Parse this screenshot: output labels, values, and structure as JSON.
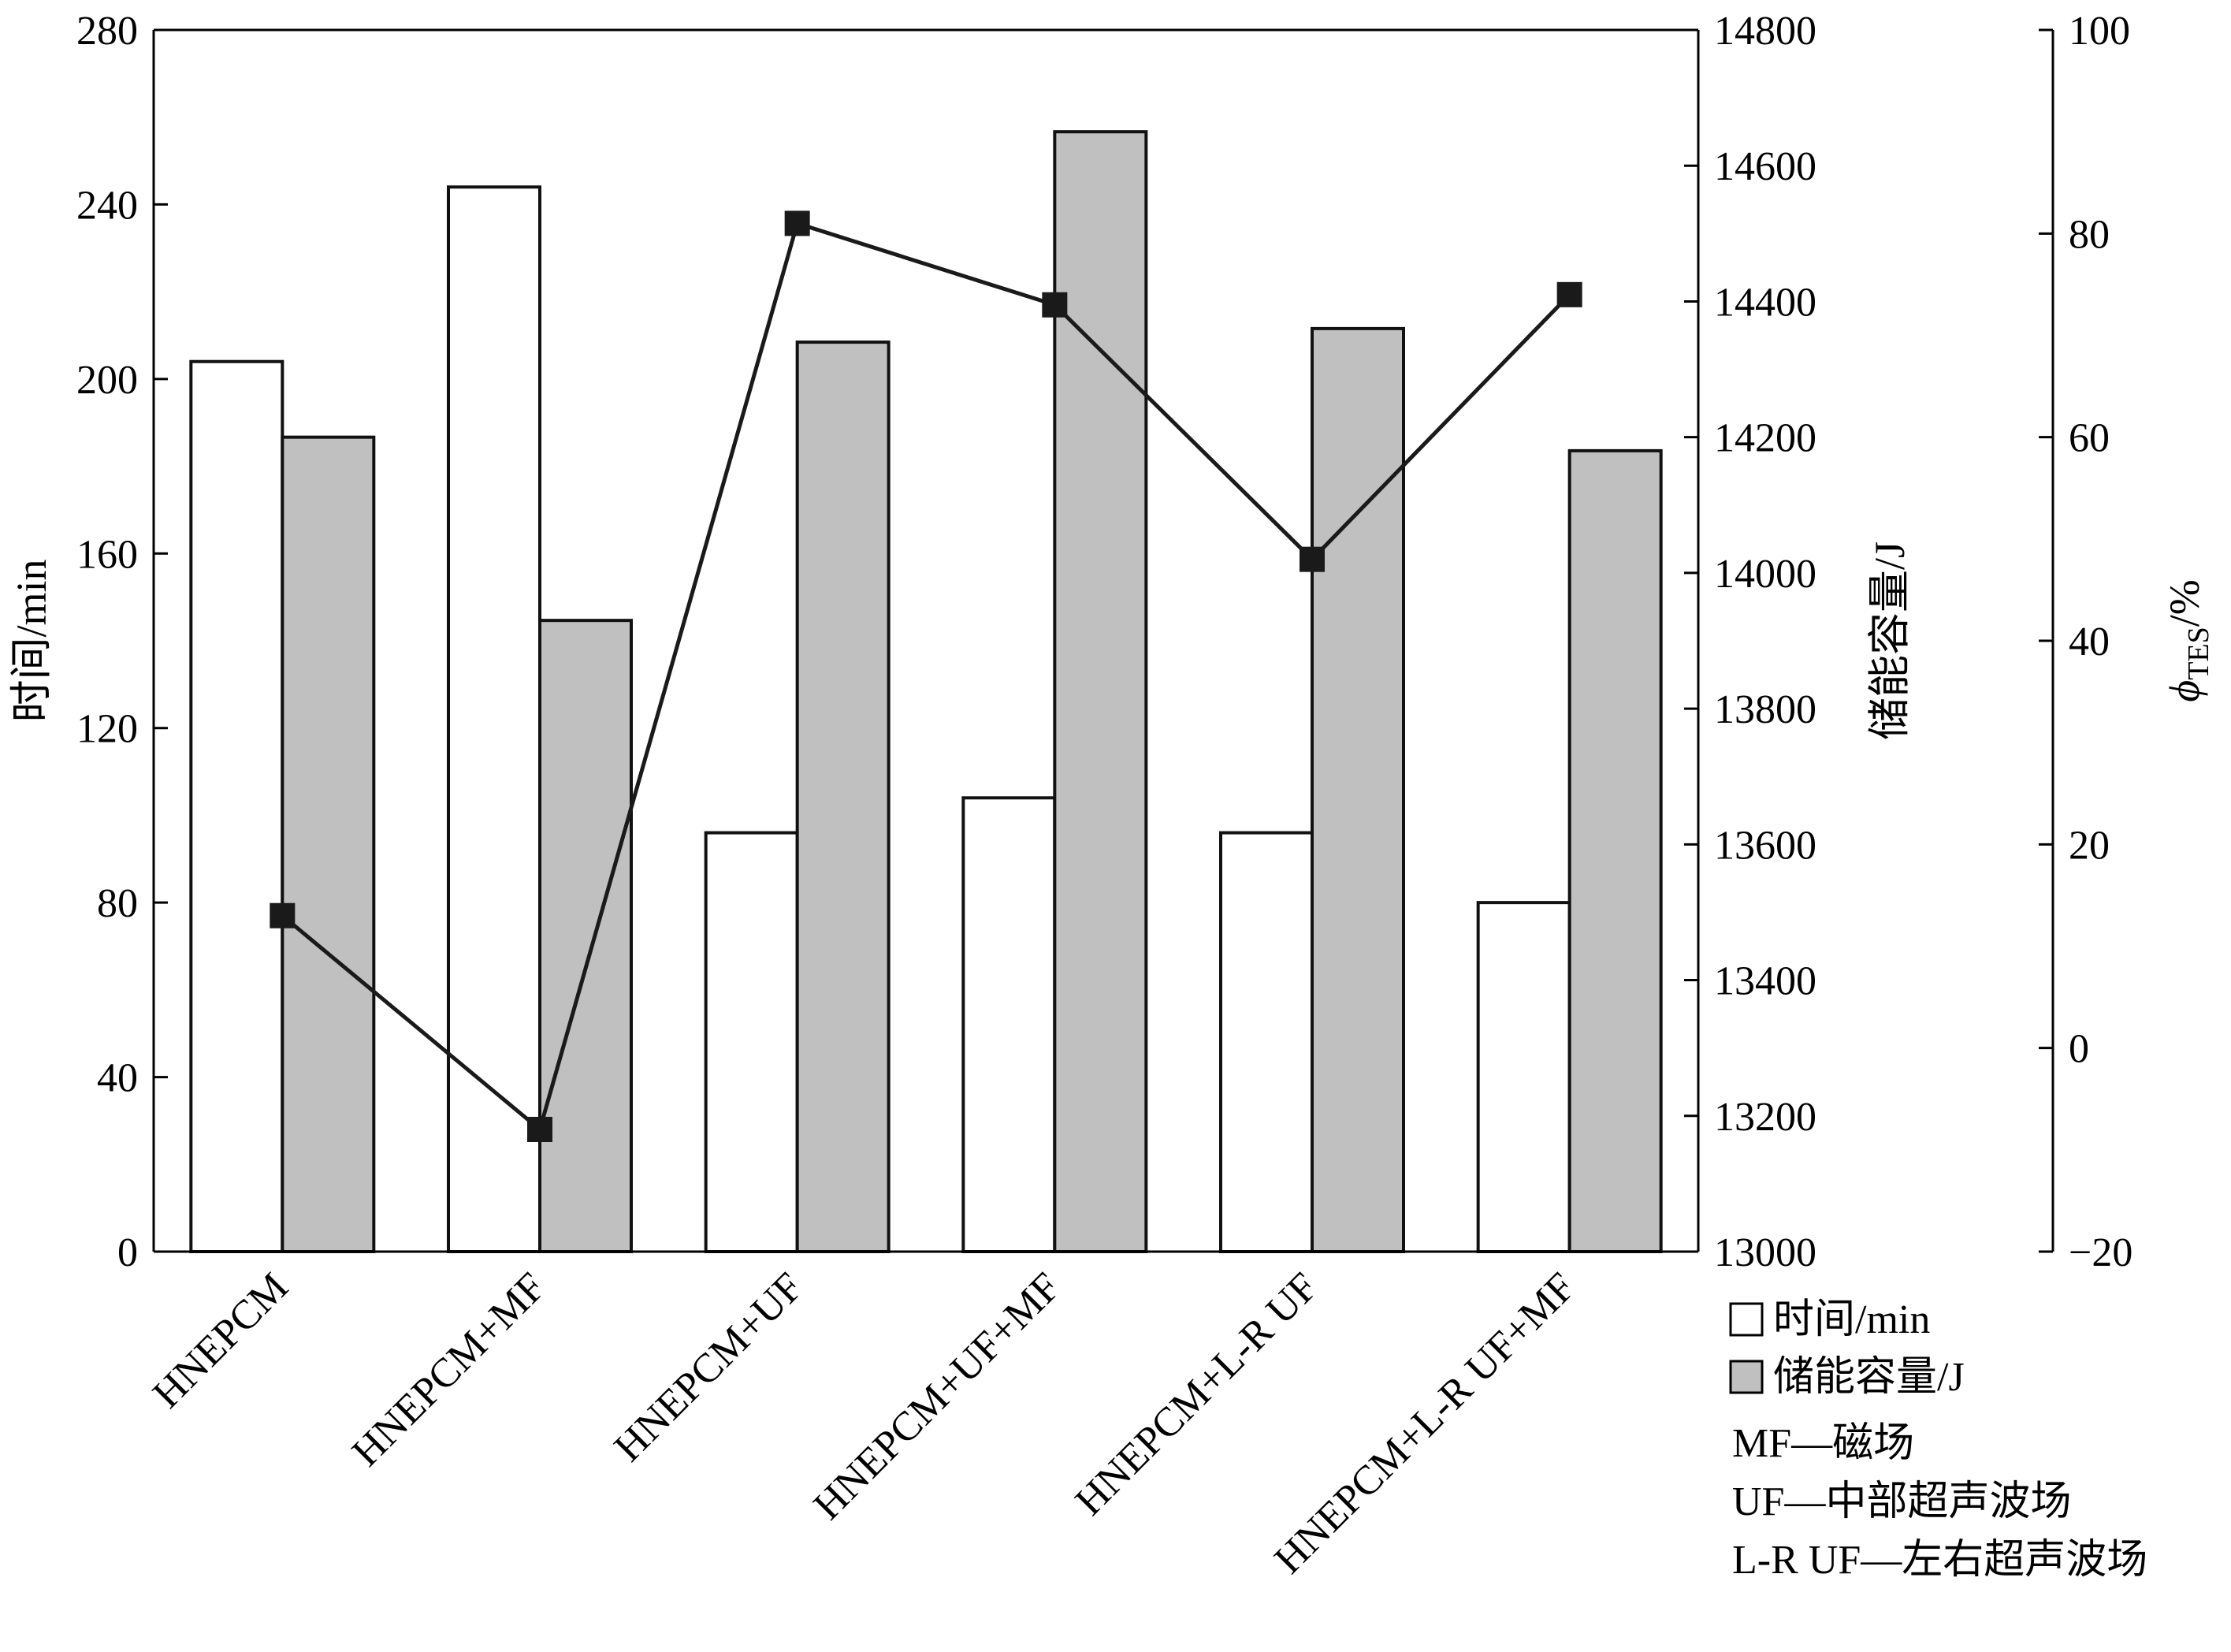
{
  "chart_data": {
    "type": "bar",
    "categories": [
      "HNEPCM",
      "HNEPCM+MF",
      "HNEPCM+UF",
      "HNEPCM+UF+MF",
      "HNEPCM+L-R UF",
      "HNEPCM+L-R UF+MF"
    ],
    "series": [
      {
        "name": "时间/min",
        "axis": "left",
        "kind": "bar",
        "color": "#ffffff",
        "values": [
          204,
          244,
          96,
          104,
          96,
          80
        ]
      },
      {
        "name": "储能容量/J",
        "axis": "right",
        "kind": "bar",
        "color": "#c0c0c0",
        "values": [
          14200,
          13930,
          14340,
          14650,
          14360,
          14180
        ]
      },
      {
        "kind": "line",
        "axis": "far-right",
        "color": "#1a1a1a",
        "values": [
          13,
          -8,
          81,
          73,
          48,
          74
        ]
      }
    ],
    "axes": {
      "left": {
        "label": "时间/min",
        "ylim": [
          0,
          280
        ],
        "ticks": [
          "0",
          "40",
          "80",
          "120",
          "160",
          "200",
          "240",
          "280"
        ]
      },
      "right": {
        "label": "储能容量/J",
        "ylim": [
          13000,
          14800
        ],
        "ticks": [
          "13000",
          "13200",
          "13400",
          "13600",
          "13800",
          "14000",
          "14200",
          "14400",
          "14600",
          "14800"
        ]
      },
      "far_right": {
        "label_symbol": "ϕ",
        "label_subscript": "TES",
        "label_unit": "/%",
        "ylim": [
          -20,
          100
        ],
        "ticks": [
          "−20",
          "0",
          "20",
          "40",
          "60",
          "80",
          "100"
        ]
      }
    },
    "legend": {
      "position": "bottom-right",
      "entries": [
        "时间/min",
        "储能容量/J"
      ],
      "notes": [
        "MF—磁场",
        "UF—中部超声波场",
        "L-R UF—左右超声波场"
      ]
    },
    "grid": false
  }
}
